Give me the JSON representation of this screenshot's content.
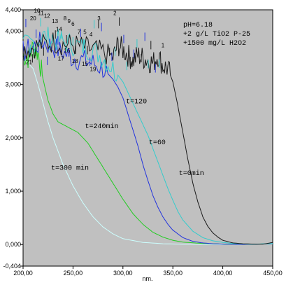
{
  "chart_data": {
    "type": "line",
    "xlabel": "nm.",
    "xlim": [
      200,
      450
    ],
    "ylim": [
      -404,
      4400
    ],
    "x_ticks": [
      {
        "v": 200,
        "label": "200,00"
      },
      {
        "v": 250,
        "label": "250,00"
      },
      {
        "v": 300,
        "label": "300,00"
      },
      {
        "v": 350,
        "label": "350,00"
      },
      {
        "v": 400,
        "label": "400,00"
      },
      {
        "v": 450,
        "label": "450,00"
      }
    ],
    "y_ticks": [
      {
        "v": 4400,
        "label": "4,400"
      },
      {
        "v": 4000,
        "label": "4,000"
      },
      {
        "v": 3000,
        "label": "3,000"
      },
      {
        "v": 2000,
        "label": "2,000"
      },
      {
        "v": 1000,
        "label": "1,000"
      },
      {
        "v": 0,
        "label": "0,000"
      },
      {
        "v": -404,
        "label": "-0,404"
      }
    ],
    "annotation_lines": [
      "pH=6.18",
      "+2 g/L TiO2 P-25",
      "+1500 mg/L H2O2"
    ],
    "series": [
      {
        "name": "t=0min",
        "color": "#1a1a1a",
        "label_at": [
          356,
          1300
        ],
        "x": [
          200,
          210,
          220,
          230,
          240,
          250,
          260,
          270,
          280,
          290,
          295,
          300,
          305,
          310,
          315,
          320,
          325,
          330,
          335,
          340,
          345,
          350,
          355,
          360,
          365,
          370,
          375,
          380,
          385,
          390,
          395,
          400,
          410,
          420,
          430,
          440,
          450
        ],
        "y": [
          3650,
          3700,
          3750,
          3800,
          3750,
          3750,
          3700,
          3650,
          3600,
          3500,
          3750,
          3650,
          3550,
          3450,
          3550,
          3500,
          3450,
          3400,
          3550,
          3350,
          3300,
          3050,
          2600,
          2100,
          1600,
          1150,
          800,
          520,
          340,
          220,
          140,
          80,
          30,
          15,
          8,
          5,
          40
        ]
      },
      {
        "name": "t=60",
        "color": "#33cccc",
        "label_at": [
          326,
          1880
        ],
        "x": [
          200,
          210,
          220,
          230,
          240,
          250,
          260,
          270,
          280,
          290,
          300,
          305,
          310,
          315,
          320,
          325,
          330,
          335,
          340,
          345,
          350,
          355,
          360,
          370,
          380,
          390,
          400,
          410,
          420,
          430,
          450
        ],
        "y": [
          3700,
          3800,
          3900,
          3850,
          3800,
          3750,
          3700,
          3650,
          3500,
          3300,
          3050,
          2850,
          2650,
          2450,
          2250,
          2050,
          1800,
          1550,
          1300,
          1050,
          830,
          620,
          460,
          250,
          130,
          70,
          40,
          20,
          10,
          5,
          20
        ]
      },
      {
        "name": "t=120",
        "color": "#2233dd",
        "label_at": [
          303,
          2650
        ],
        "x": [
          200,
          210,
          220,
          230,
          240,
          250,
          260,
          270,
          280,
          290,
          295,
          300,
          305,
          310,
          315,
          320,
          325,
          330,
          335,
          340,
          345,
          350,
          360,
          370,
          380,
          390,
          400,
          410,
          420,
          450
        ],
        "y": [
          3600,
          3700,
          3800,
          3700,
          3600,
          3500,
          3450,
          3400,
          3300,
          3100,
          2950,
          2750,
          2450,
          2150,
          1850,
          1500,
          1200,
          920,
          700,
          520,
          380,
          270,
          130,
          60,
          30,
          15,
          8,
          4,
          2,
          15
        ]
      },
      {
        "name": "t=240min",
        "color": "#22cc22",
        "label_at": [
          262,
          2180
        ],
        "x": [
          200,
          205,
          210,
          215,
          220,
          225,
          230,
          235,
          240,
          245,
          250,
          255,
          260,
          265,
          270,
          275,
          280,
          285,
          290,
          295,
          300,
          310,
          320,
          330,
          340,
          350,
          360,
          380,
          400,
          420,
          450
        ],
        "y": [
          3550,
          3500,
          3700,
          3600,
          3100,
          2700,
          2450,
          2300,
          2250,
          2200,
          2150,
          2100,
          2000,
          1900,
          1750,
          1600,
          1450,
          1300,
          1150,
          1000,
          850,
          580,
          380,
          230,
          140,
          80,
          45,
          20,
          8,
          3,
          15
        ]
      },
      {
        "name": "t=300 min",
        "color": "#ccffff",
        "label_at": [
          228,
          1400
        ],
        "x": [
          200,
          210,
          215,
          220,
          225,
          230,
          240,
          250,
          260,
          270,
          280,
          290,
          300,
          320,
          340,
          360,
          380,
          400,
          450
        ],
        "y": [
          3500,
          3300,
          3000,
          2650,
          2300,
          2000,
          1500,
          1100,
          780,
          520,
          330,
          200,
          110,
          40,
          15,
          6,
          3,
          2,
          10
        ]
      }
    ]
  }
}
